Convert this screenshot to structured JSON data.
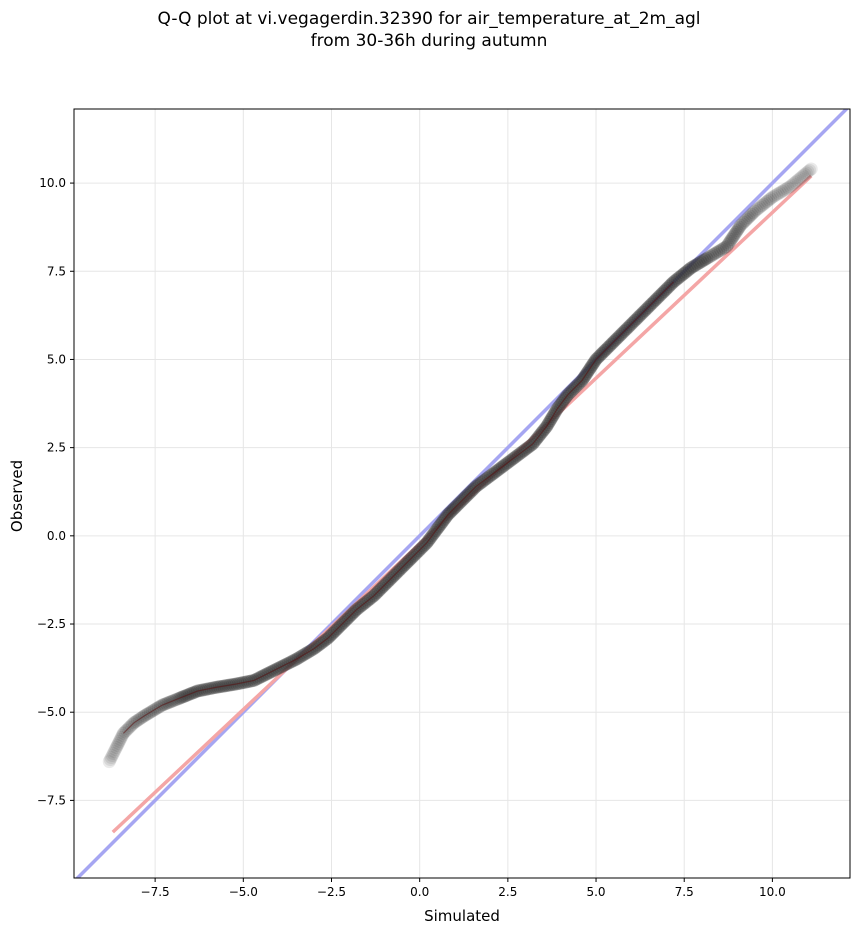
{
  "chart_data": {
    "type": "scatter",
    "title_line1": "Q-Q plot at vi.vegagerdin.32390 for air_temperature_at_2m_agl",
    "title_line2": "from 30-36h during autumn",
    "xlabel": "Simulated",
    "ylabel": "Observed",
    "xlim": [
      -9.8,
      12.2
    ],
    "ylim": [
      -9.7,
      12.1
    ],
    "xticks": [
      -7.5,
      -5.0,
      -2.5,
      0.0,
      2.5,
      5.0,
      7.5,
      10.0
    ],
    "xtick_labels": [
      "−7.5",
      "−5.0",
      "−2.5",
      "0.0",
      "2.5",
      "5.0",
      "7.5",
      "10.0"
    ],
    "yticks": [
      -7.5,
      -5.0,
      -2.5,
      0.0,
      2.5,
      5.0,
      7.5,
      10.0
    ],
    "ytick_labels": [
      "−7.5",
      "−5.0",
      "−2.5",
      "0.0",
      "2.5",
      "5.0",
      "7.5",
      "10.0"
    ],
    "grid": true,
    "identity_line_color": "#a6a6f2",
    "fit_line_color": "#f4a6a6",
    "point_color": "#333333",
    "fit_line": {
      "x": [
        -8.7,
        11.1
      ],
      "y": [
        -8.4,
        10.2
      ]
    },
    "quantile_curve": {
      "x": [
        -8.8,
        -8.6,
        -8.4,
        -8.1,
        -7.8,
        -7.3,
        -6.8,
        -6.3,
        -5.8,
        -5.2,
        -4.7,
        -4.3,
        -3.9,
        -3.5,
        -3.0,
        -2.6,
        -2.2,
        -1.8,
        -1.3,
        -0.9,
        -0.5,
        -0.2,
        0.2,
        0.5,
        0.8,
        1.0,
        1.3,
        1.6,
        2.0,
        2.4,
        2.8,
        3.2,
        3.6,
        3.9,
        4.2,
        4.6,
        5.0,
        5.3,
        5.7,
        6.2,
        6.7,
        7.2,
        7.7,
        8.2,
        8.7,
        9.1,
        9.5,
        10.0,
        10.5,
        11.1
      ],
      "y": [
        -6.4,
        -6.0,
        -5.6,
        -5.3,
        -5.1,
        -4.8,
        -4.6,
        -4.4,
        -4.3,
        -4.2,
        -4.1,
        -3.9,
        -3.7,
        -3.5,
        -3.2,
        -2.9,
        -2.5,
        -2.1,
        -1.7,
        -1.3,
        -0.9,
        -0.6,
        -0.2,
        0.2,
        0.6,
        0.8,
        1.1,
        1.4,
        1.7,
        2.0,
        2.3,
        2.6,
        3.1,
        3.6,
        4.0,
        4.4,
        5.0,
        5.3,
        5.7,
        6.2,
        6.7,
        7.2,
        7.6,
        7.9,
        8.2,
        8.8,
        9.2,
        9.6,
        9.9,
        10.4
      ]
    }
  }
}
